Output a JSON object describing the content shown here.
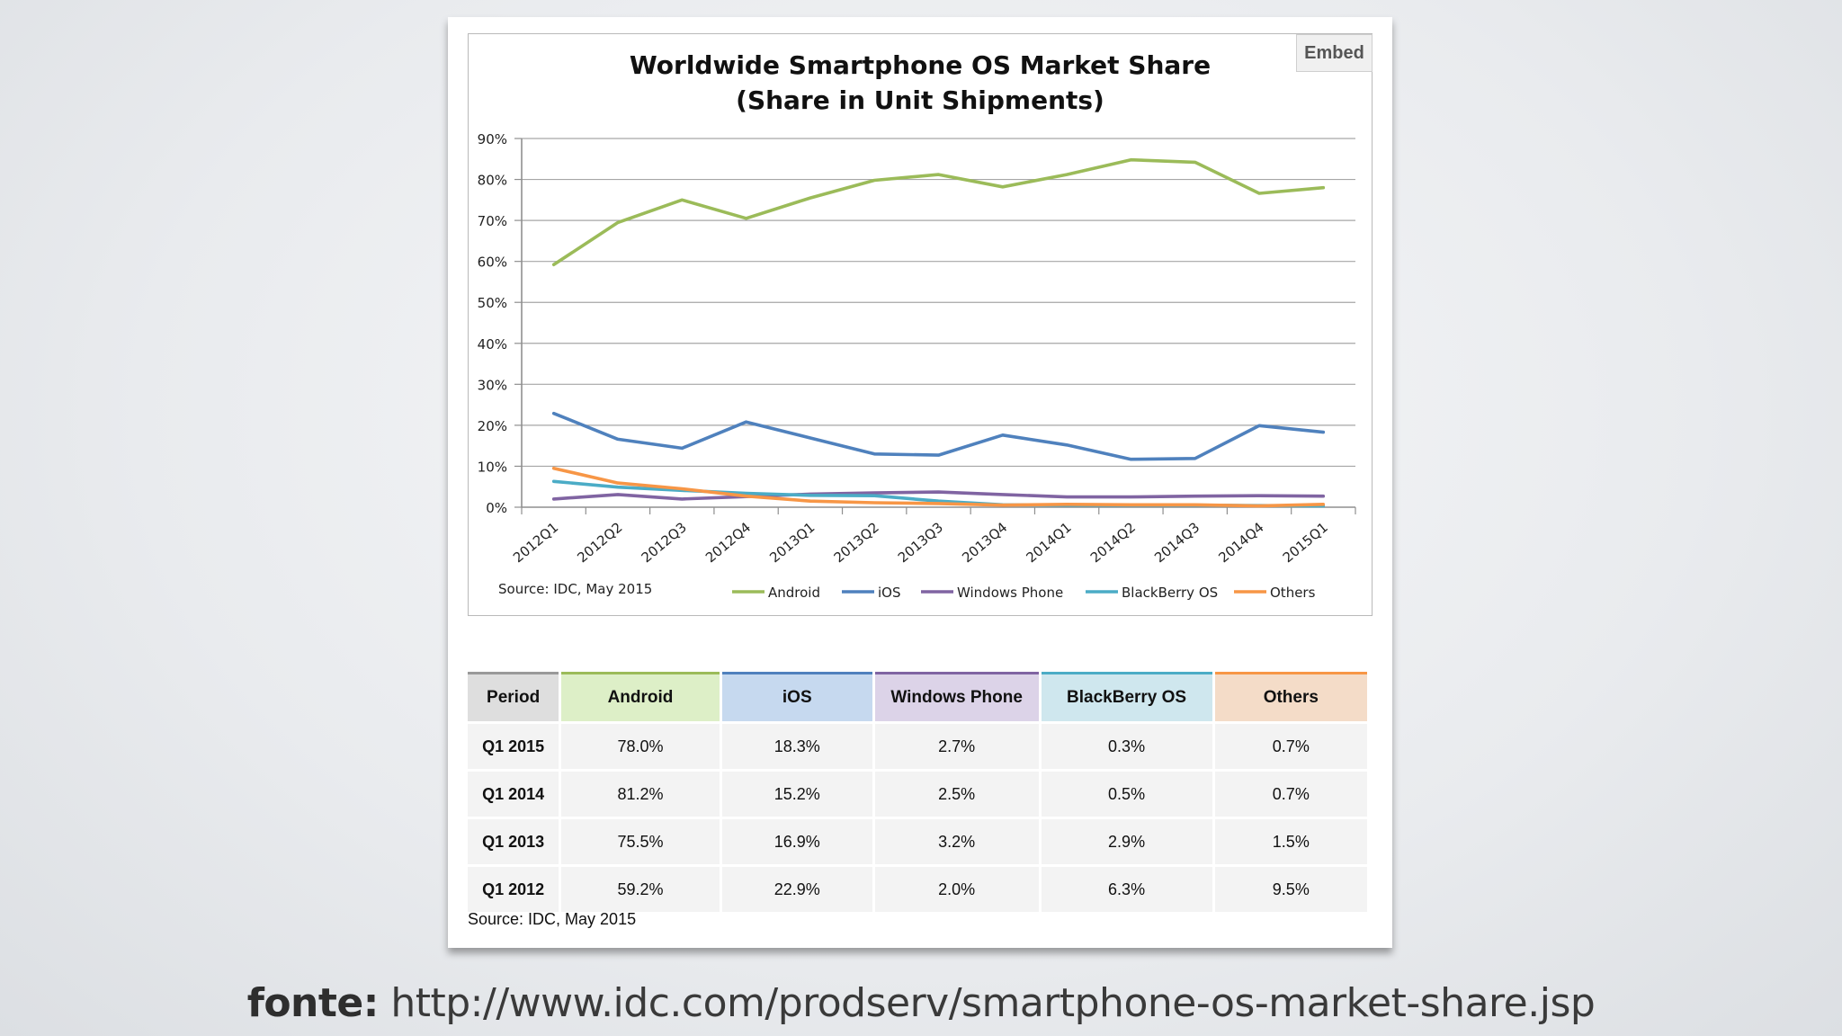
{
  "chart_data": {
    "type": "line",
    "title": "Worldwide Smartphone OS Market Share",
    "subtitle": "(Share in Unit Shipments)",
    "source": "Source: IDC, May 2015",
    "categories": [
      "2012Q1",
      "2012Q2",
      "2012Q3",
      "2012Q4",
      "2013Q1",
      "2013Q2",
      "2013Q3",
      "2013Q4",
      "2014Q1",
      "2014Q2",
      "2014Q3",
      "2014Q4",
      "2015Q1"
    ],
    "yticks": [
      "0%",
      "10%",
      "20%",
      "30%",
      "40%",
      "50%",
      "60%",
      "70%",
      "80%",
      "90%"
    ],
    "ylim": [
      0,
      90
    ],
    "grid": true,
    "legend_position": "bottom-right",
    "series": [
      {
        "name": "Android",
        "color": "#9bbb59",
        "values": [
          59.2,
          69.5,
          75.0,
          70.5,
          75.5,
          79.8,
          81.2,
          78.2,
          81.2,
          84.8,
          84.2,
          76.6,
          78.0
        ]
      },
      {
        "name": "iOS",
        "color": "#4f81bd",
        "values": [
          22.9,
          16.6,
          14.4,
          20.8,
          16.9,
          13.0,
          12.7,
          17.6,
          15.2,
          11.7,
          11.9,
          19.9,
          18.3
        ]
      },
      {
        "name": "Windows Phone",
        "color": "#8064a2",
        "values": [
          2.0,
          3.1,
          2.0,
          2.6,
          3.2,
          3.5,
          3.7,
          3.1,
          2.5,
          2.5,
          2.7,
          2.8,
          2.7
        ]
      },
      {
        "name": "BlackBerry OS",
        "color": "#4bacc6",
        "values": [
          6.3,
          4.9,
          4.1,
          3.4,
          2.9,
          2.8,
          1.5,
          0.6,
          0.5,
          0.5,
          0.5,
          0.4,
          0.3
        ]
      },
      {
        "name": "Others",
        "color": "#f79646",
        "values": [
          9.5,
          5.9,
          4.5,
          2.7,
          1.5,
          1.1,
          0.9,
          0.5,
          0.7,
          0.6,
          0.6,
          0.3,
          0.7
        ]
      }
    ]
  },
  "embed_label": "Embed",
  "table": {
    "headers": [
      {
        "label": "Period",
        "color": "#dedede",
        "accent": "#999999"
      },
      {
        "label": "Android",
        "color": "#ddefc7",
        "accent": "#9bbb59"
      },
      {
        "label": "iOS",
        "color": "#c6d9ef",
        "accent": "#4f81bd"
      },
      {
        "label": "Windows Phone",
        "color": "#dcd3e8",
        "accent": "#8064a2"
      },
      {
        "label": "BlackBerry OS",
        "color": "#cfe7ee",
        "accent": "#4bacc6"
      },
      {
        "label": "Others",
        "color": "#f4dcc8",
        "accent": "#f79646"
      }
    ],
    "rows": [
      [
        "Q1 2015",
        "78.0%",
        "18.3%",
        "2.7%",
        "0.3%",
        "0.7%"
      ],
      [
        "Q1 2014",
        "81.2%",
        "15.2%",
        "2.5%",
        "0.5%",
        "0.7%"
      ],
      [
        "Q1 2013",
        "75.5%",
        "16.9%",
        "3.2%",
        "2.9%",
        "1.5%"
      ],
      [
        "Q1 2012",
        "59.2%",
        "22.9%",
        "2.0%",
        "6.3%",
        "9.5%"
      ]
    ],
    "source": "Source: IDC, May 2015"
  },
  "footer": {
    "label": "fonte:",
    "url": "http://www.idc.com/prodserv/smartphone-os-market-share.jsp"
  }
}
